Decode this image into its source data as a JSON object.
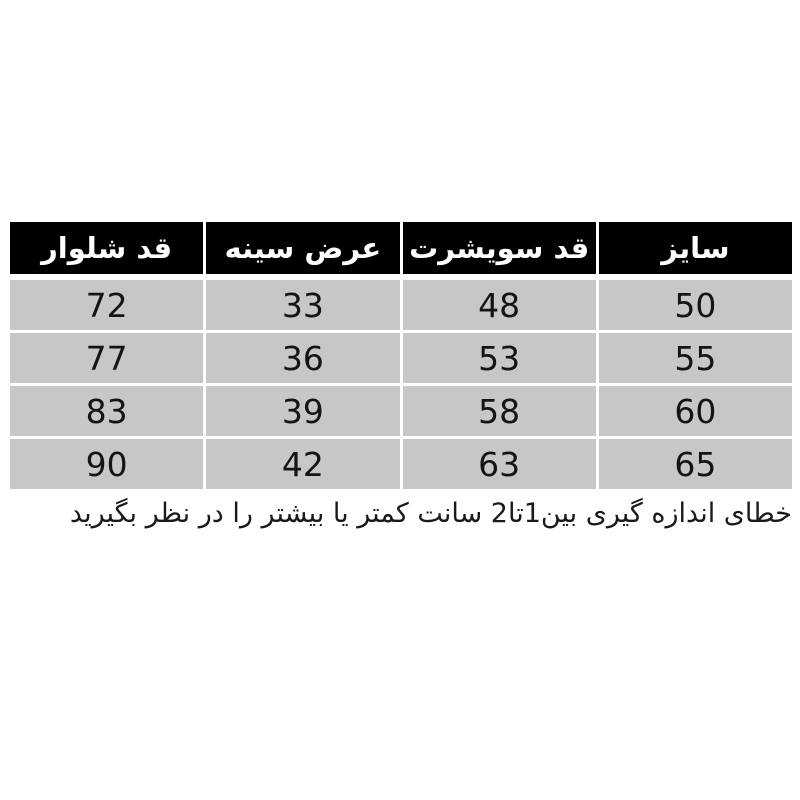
{
  "table": {
    "header_bg": "#000000",
    "header_text_color": "#ffffff",
    "cell_bg": "#c7c7c7",
    "cell_text_color": "#141414",
    "columns": [
      "سایز",
      "قد سویشرت",
      "عرض سینه",
      "قد شلوار"
    ],
    "rows": [
      [
        "50",
        "48",
        "33",
        "72"
      ],
      [
        "55",
        "53",
        "36",
        "77"
      ],
      [
        "60",
        "58",
        "39",
        "83"
      ],
      [
        "65",
        "63",
        "42",
        "90"
      ]
    ]
  },
  "note": {
    "text": "خطای اندازه گیری بین1تا2 سانت کمتر یا بیشتر را در نظر بگیرید"
  }
}
